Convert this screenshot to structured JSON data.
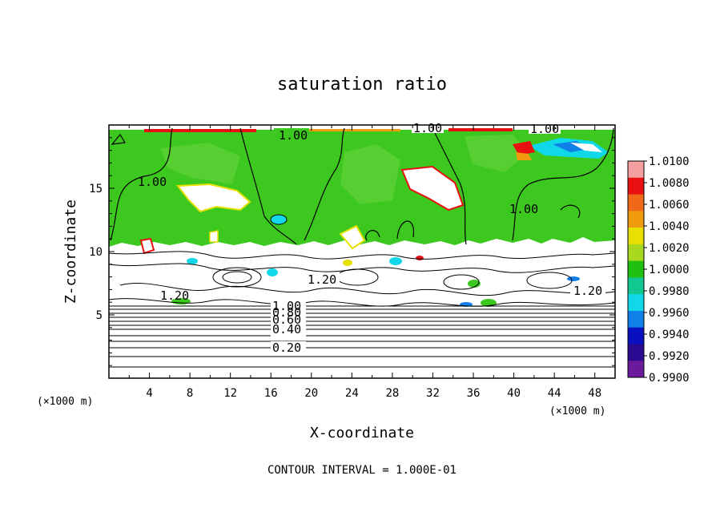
{
  "chart_data": {
    "type": "heatmap",
    "title": "saturation ratio",
    "xlabel": "X-coordinate",
    "ylabel": "Z-coordinate",
    "x_units": "(×1000 m)",
    "y_units": "(×1000 m)",
    "xlim": [
      0,
      50
    ],
    "ylim": [
      0,
      20
    ],
    "x_ticks": [
      "4",
      "8",
      "12",
      "16",
      "20",
      "24",
      "28",
      "32",
      "36",
      "40",
      "44",
      "48"
    ],
    "y_ticks": [
      "5",
      "10",
      "15"
    ],
    "footer": "CONTOUR INTERVAL = 1.000E-01",
    "colorbar": {
      "ticks": [
        "1.0100",
        "1.0080",
        "1.0060",
        "1.0040",
        "1.0020",
        "1.0000",
        "0.9980",
        "0.9960",
        "0.9940",
        "0.9920",
        "0.9900"
      ],
      "colors": [
        "#f4a0a0",
        "#e81010",
        "#f06818",
        "#f09a10",
        "#e8e000",
        "#a8d820",
        "#20c010",
        "#10c890",
        "#10d8e8",
        "#1080e8",
        "#0810c0",
        "#2a0a90",
        "#6a1a9a"
      ]
    },
    "contour_labels": [
      "1.00",
      "1.00",
      "1.00",
      "1.00",
      "1.00",
      "1.20",
      "1.20",
      "1.20",
      "1.00",
      "0.80",
      "0.60",
      "0.40",
      "0.20"
    ],
    "contour_levels_lower": [
      0.1,
      0.2,
      0.3,
      0.4,
      0.5,
      0.6,
      0.7,
      0.8,
      0.9,
      1.0
    ],
    "colors": {
      "field": "#3cc81e",
      "field_light": "#62d23a",
      "cloud": "#ffffff",
      "rim_yellow": "#e8e000",
      "rim_red": "#e81010",
      "cyan": "#18d0d8"
    }
  }
}
